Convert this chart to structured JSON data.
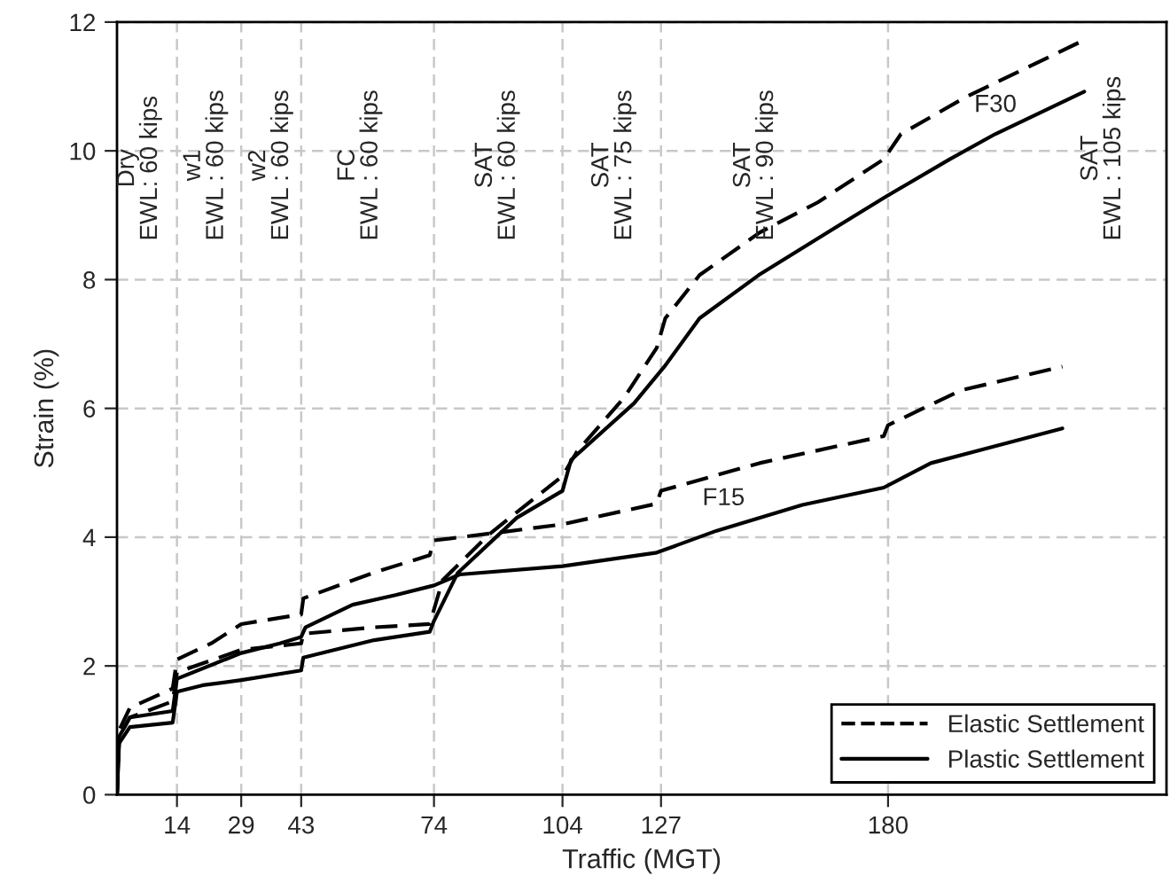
{
  "chart_data": {
    "type": "line",
    "xlabel": "Traffic (MGT)",
    "ylabel": "Strain (%)",
    "xlim": [
      0,
      245
    ],
    "xticks": [
      14,
      29,
      43,
      74,
      104,
      127,
      180
    ],
    "ylim": [
      0,
      12
    ],
    "yticks": [
      0,
      2,
      4,
      6,
      8,
      10,
      12
    ],
    "grid": true,
    "legend": "bottom right",
    "marker": "none",
    "series": [
      {
        "name": "Elastic Settlement",
        "color": "#000000",
        "line_style": "dashed",
        "x": [
          0,
          0.5,
          3,
          13,
          14,
          29,
          43,
          43.5,
          60,
          73,
          76,
          86.8,
          104,
          107.4,
          118.4,
          126,
          128,
          136,
          150,
          163.6,
          179,
          183,
          198,
          224.5
        ],
        "values": [
          0,
          0.9,
          1.2,
          1.45,
          1.9,
          2.25,
          2.35,
          2.5,
          2.6,
          2.65,
          3.33,
          4.04,
          4.95,
          5.33,
          6.17,
          6.94,
          7.4,
          8.07,
          8.73,
          9.2,
          9.87,
          10.26,
          10.83,
          11.68
        ]
      },
      {
        "name": "Plastic Settlement",
        "color": "#000000",
        "line_style": "solid",
        "x": [
          0,
          0.5,
          3,
          13,
          14,
          20,
          29,
          43,
          43.5,
          60,
          73,
          74,
          79.5,
          93.3,
          104,
          106,
          120.7,
          127.8,
          136,
          149.8,
          163.6,
          179,
          194.4,
          205,
          225.8
        ],
        "values": [
          0,
          0.8,
          1.05,
          1.12,
          1.6,
          1.7,
          1.78,
          1.93,
          2.13,
          2.4,
          2.53,
          2.7,
          3.44,
          4.3,
          4.72,
          5.2,
          6.08,
          6.65,
          7.4,
          8.07,
          8.64,
          9.27,
          9.87,
          10.26,
          10.92
        ]
      },
      {
        "color": "#000000",
        "line_style": "dashed",
        "x": [
          0,
          0.5,
          3,
          13,
          14,
          22,
          29,
          43,
          43.5,
          60,
          73,
          74,
          90,
          104,
          126,
          127,
          150,
          179,
          180,
          197,
          220.7
        ],
        "values": [
          0,
          1.0,
          1.35,
          1.65,
          2.1,
          2.35,
          2.65,
          2.8,
          3.05,
          3.45,
          3.72,
          3.95,
          4.08,
          4.2,
          4.52,
          4.72,
          5.15,
          5.57,
          5.74,
          6.28,
          6.65
        ]
      },
      {
        "color": "#000000",
        "line_style": "solid",
        "x": [
          0,
          0.5,
          3,
          13,
          14,
          29,
          38,
          43,
          44,
          55,
          65,
          74,
          80,
          104,
          126,
          140,
          160,
          179,
          190,
          220.7
        ],
        "values": [
          0,
          0.9,
          1.2,
          1.3,
          1.8,
          2.2,
          2.35,
          2.45,
          2.6,
          2.95,
          3.1,
          3.25,
          3.42,
          3.55,
          3.76,
          4.1,
          4.5,
          4.77,
          5.15,
          5.69
        ]
      }
    ],
    "annotations": [
      "Dry\nEWL: 60 kips",
      "w1\nEWL : 60 kips",
      "w2\nEWL : 60 kips",
      "FC\nEWL : 60 kips",
      "SAT\nEWL : 60 kips",
      "SAT\nEWL : 75 kips",
      "SAT\nEWL : 90 kips",
      "SAT\nEWL : 105 kips",
      "F30",
      "F15"
    ]
  }
}
